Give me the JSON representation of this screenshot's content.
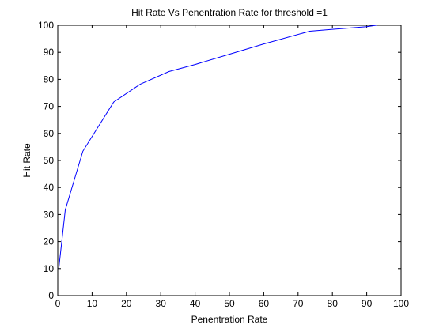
{
  "chart_data": {
    "type": "line",
    "title": "Hit Rate Vs Penentration Rate for threshold =1",
    "xlabel": "Penentration Rate",
    "ylabel": "Hit Rate",
    "xlim": [
      0,
      100
    ],
    "ylim": [
      0,
      100
    ],
    "xticks": [
      0,
      10,
      20,
      30,
      40,
      50,
      60,
      70,
      80,
      90,
      100
    ],
    "yticks": [
      0,
      10,
      20,
      30,
      40,
      50,
      60,
      70,
      80,
      90,
      100
    ],
    "grid": false,
    "legend": "none",
    "series": [
      {
        "color": "#0000ff",
        "x": [
          0.3,
          2.2,
          7.3,
          16.3,
          24.0,
          32.4,
          40.0,
          50.0,
          60.0,
          73.4,
          80.0,
          90.0,
          92.8
        ],
        "y": [
          10.0,
          31.7,
          53.4,
          71.6,
          78.2,
          82.9,
          85.5,
          89.3,
          93.1,
          97.8,
          98.5,
          99.5,
          100.0
        ]
      }
    ]
  }
}
